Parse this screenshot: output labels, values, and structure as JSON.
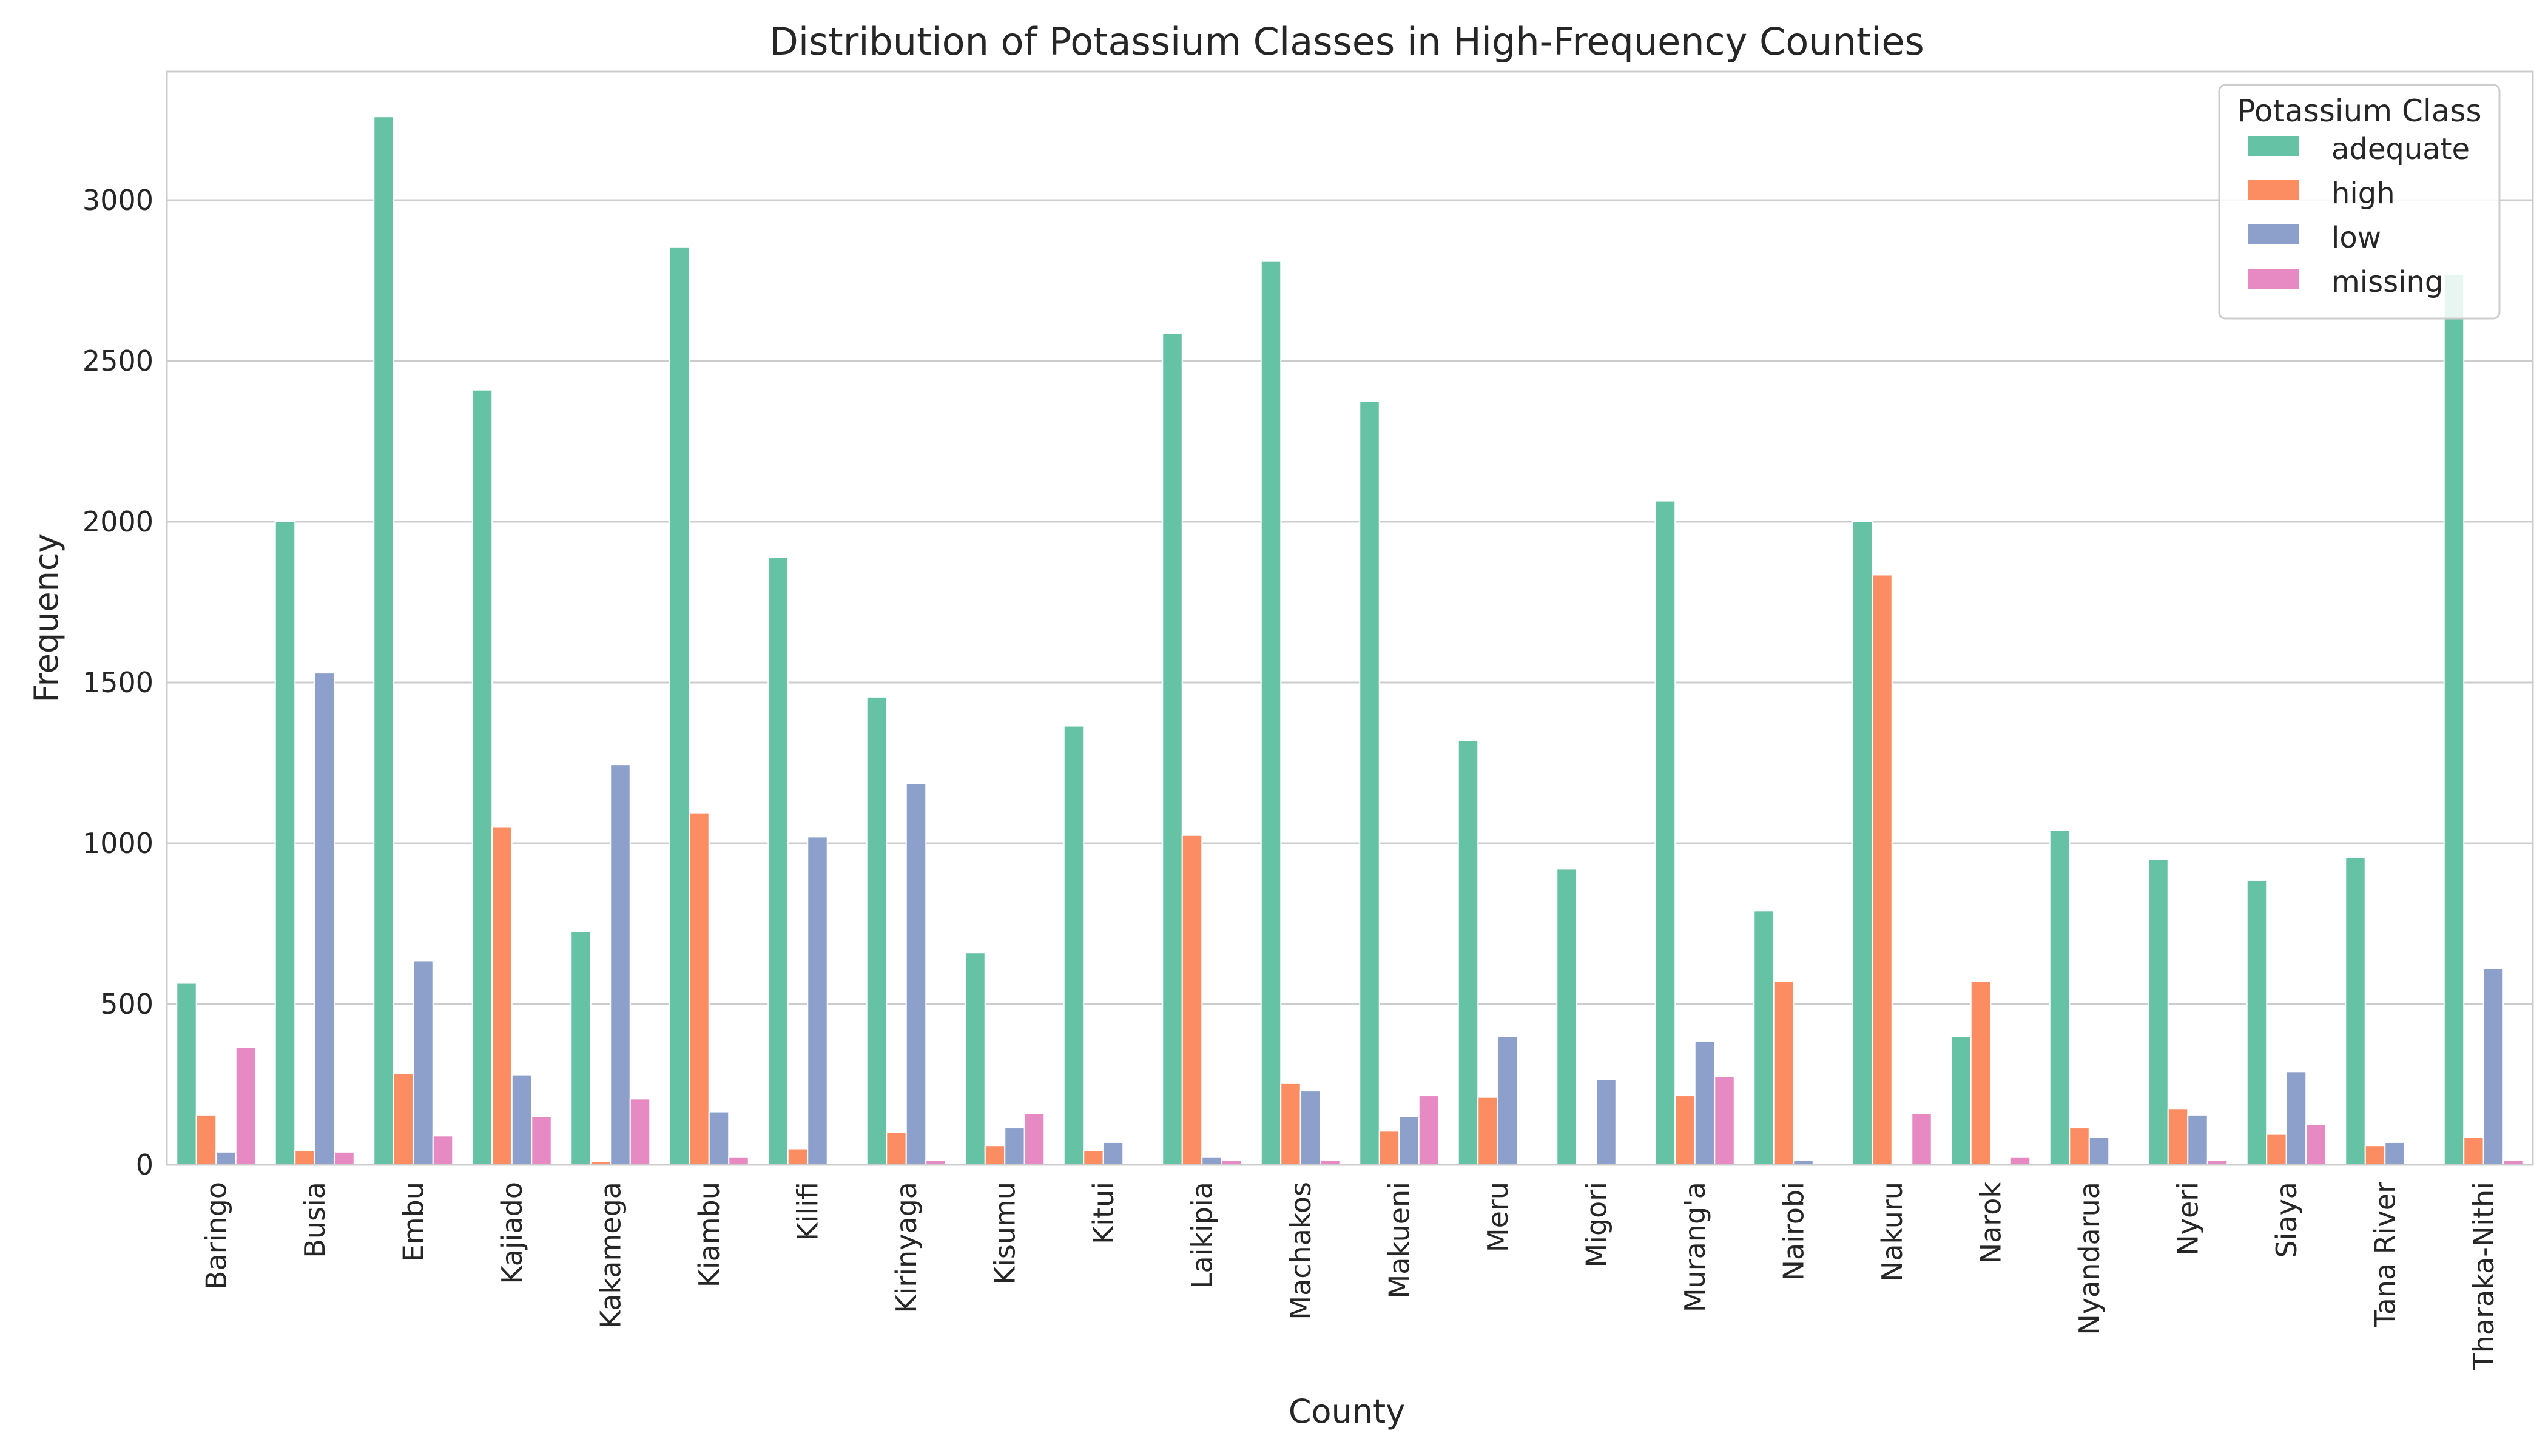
{
  "chart_data": {
    "type": "bar",
    "title": "Distribution of Potassium Classes in High-Frequency Counties",
    "xlabel": "County",
    "ylabel": "Frequency",
    "ylim": [
      0,
      3400
    ],
    "yticks": [
      0,
      500,
      1000,
      1500,
      2000,
      2500,
      3000
    ],
    "grid": "horizontal",
    "legend": {
      "title": "Potassium Class",
      "placement": "top-right"
    },
    "categories": [
      "Baringo",
      "Busia",
      "Embu",
      "Kajiado",
      "Kakamega",
      "Kiambu",
      "Kilifi",
      "Kirinyaga",
      "Kisumu",
      "Kitui",
      "Laikipia",
      "Machakos",
      "Makueni",
      "Meru",
      "Migori",
      "Murang'a",
      "Nairobi",
      "Nakuru",
      "Narok",
      "Nyandarua",
      "Nyeri",
      "Siaya",
      "Tana River",
      "Tharaka-Nithi"
    ],
    "series": [
      {
        "name": "adequate",
        "color": "#66c2a5",
        "values": [
          565,
          2000,
          3260,
          2410,
          725,
          2855,
          1890,
          1455,
          660,
          1365,
          2585,
          2810,
          2375,
          1320,
          920,
          2065,
          790,
          2000,
          400,
          1040,
          950,
          885,
          955,
          2770
        ]
      },
      {
        "name": "high",
        "color": "#fc8d62",
        "values": [
          155,
          45,
          285,
          1050,
          10,
          1095,
          50,
          100,
          60,
          45,
          1025,
          255,
          105,
          210,
          0,
          215,
          570,
          1835,
          570,
          115,
          175,
          95,
          60,
          85
        ]
      },
      {
        "name": "low",
        "color": "#8da0cb",
        "values": [
          40,
          1530,
          635,
          280,
          1245,
          165,
          1020,
          1185,
          115,
          70,
          25,
          230,
          150,
          400,
          265,
          385,
          15,
          5,
          5,
          85,
          155,
          290,
          70,
          610
        ]
      },
      {
        "name": "missing",
        "color": "#e78ac3",
        "values": [
          365,
          40,
          90,
          150,
          205,
          25,
          5,
          15,
          160,
          0,
          15,
          15,
          215,
          0,
          0,
          275,
          0,
          160,
          25,
          0,
          15,
          125,
          0,
          15
        ]
      }
    ]
  }
}
